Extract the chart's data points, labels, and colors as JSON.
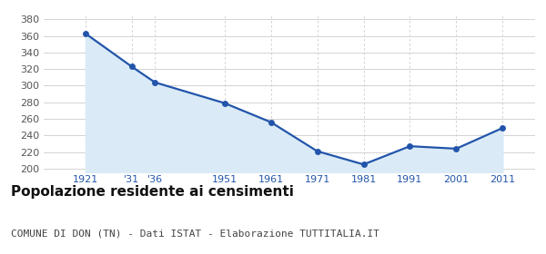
{
  "years": [
    1921,
    1931,
    1936,
    1951,
    1961,
    1971,
    1981,
    1991,
    2001,
    2011
  ],
  "population": [
    363,
    323,
    304,
    279,
    256,
    221,
    205,
    227,
    224,
    249
  ],
  "x_tick_labels": [
    "1921",
    "'31",
    "'36",
    "1951",
    "1961",
    "1971",
    "1981",
    "1991",
    "2001",
    "2011"
  ],
  "ylim": [
    195,
    385
  ],
  "yticks": [
    200,
    220,
    240,
    260,
    280,
    300,
    320,
    340,
    360,
    380
  ],
  "xlim": [
    1912,
    2018
  ],
  "line_color": "#2255aa",
  "fill_color": "#daeaf6",
  "marker_color": "#2255aa",
  "grid_color": "#cccccc",
  "background_color": "#ffffff",
  "title": "Popolazione residente ai censimenti",
  "subtitle": "COMUNE DI DON (TN) - Dati ISTAT - Elaborazione TUTTITALIA.IT",
  "title_fontsize": 11,
  "subtitle_fontsize": 8,
  "tick_fontsize": 8,
  "x_tick_color": "#2255aa",
  "y_tick_color": "#555555"
}
